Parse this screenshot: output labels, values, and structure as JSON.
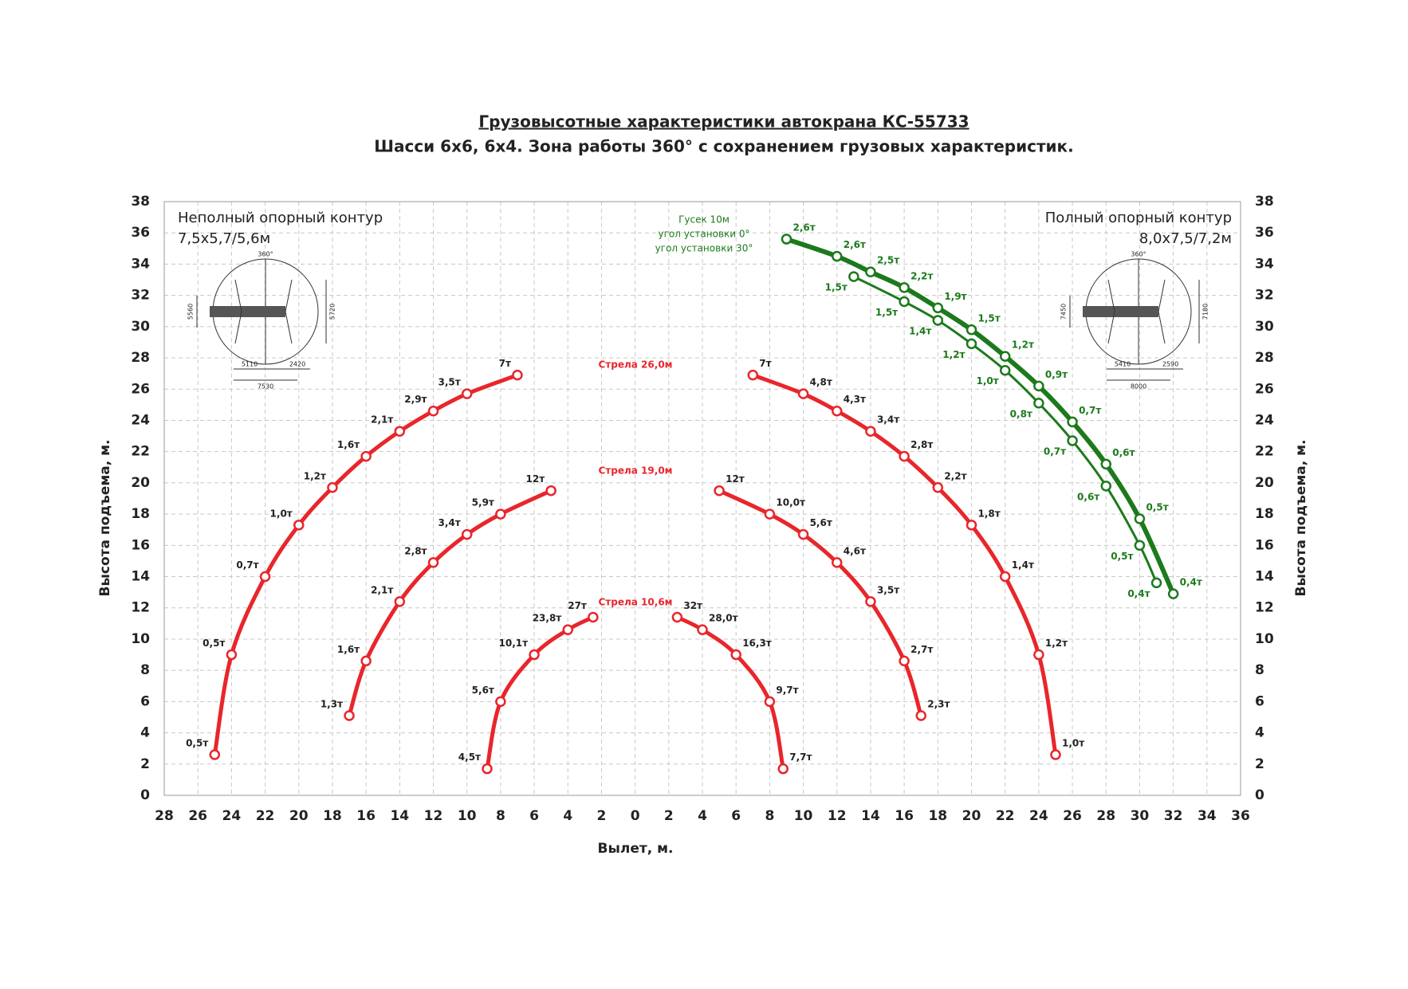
{
  "chart_data": {
    "type": "line",
    "title": "Грузовысотные характеристики автокрана КС-55733",
    "subtitle": "Шасси 6х6, 6х4. Зона работы 360° с сохранением грузовых характеристик.",
    "x_label": "Вылет, м.",
    "y_label": "Высота подъема, м.",
    "xlim": [
      -28,
      36
    ],
    "ylim": [
      0,
      38
    ],
    "xticks": [
      {
        "value": -28,
        "label": "28"
      },
      {
        "value": -26,
        "label": "26"
      },
      {
        "value": -24,
        "label": "24"
      },
      {
        "value": -22,
        "label": "22"
      },
      {
        "value": -20,
        "label": "20"
      },
      {
        "value": -18,
        "label": "18"
      },
      {
        "value": -16,
        "label": "16"
      },
      {
        "value": -14,
        "label": "14"
      },
      {
        "value": -12,
        "label": "12"
      },
      {
        "value": -10,
        "label": "10"
      },
      {
        "value": -8,
        "label": "8"
      },
      {
        "value": -6,
        "label": "6"
      },
      {
        "value": -4,
        "label": "4"
      },
      {
        "value": -2,
        "label": "2"
      },
      0,
      2,
      4,
      6,
      8,
      10,
      12,
      14,
      16,
      18,
      20,
      22,
      24,
      26,
      28,
      30,
      32,
      34,
      36
    ],
    "yticks": [
      0,
      2,
      4,
      6,
      8,
      10,
      12,
      14,
      16,
      18,
      20,
      22,
      24,
      26,
      28,
      30,
      32,
      34,
      36,
      38
    ],
    "grid": true,
    "annotations": [
      "Стрела 26,0м",
      "Стрела 19,0м",
      "Стрела 10,6м",
      "Гусек 10м",
      "угол установки 0°",
      "угол установки 30°",
      "Неполный опорный контур",
      "7,5х5,7/5,6м",
      "Полный опорный контур",
      "8,0х7,5/7,2м"
    ],
    "diagrams": [
      [
        "360°",
        "5110",
        "2420",
        "7530",
        "5720",
        "5560"
      ],
      [
        "360°",
        "5410",
        "2590",
        "8000",
        "7180",
        "7450"
      ]
    ],
    "series": [
      {
        "color": "#e8262b",
        "x": [
          -25,
          -24,
          -22,
          -20,
          -18,
          -16,
          -14,
          -12,
          -10,
          -7
        ],
        "y": [
          2.6,
          9,
          14,
          17.3,
          19.7,
          21.7,
          23.3,
          24.6,
          25.7,
          26.9
        ],
        "loads": [
          "0,5т",
          "0,5т",
          "0,7т",
          "1,0т",
          "1,2т",
          "1,6т",
          "2,1т",
          "2,9т",
          "3,5т",
          "7т"
        ]
      },
      {
        "color": "#e8262b",
        "x": [
          -17,
          -16,
          -14,
          -12,
          -10,
          -8,
          -5
        ],
        "y": [
          5.1,
          8.6,
          12.4,
          14.9,
          16.7,
          18,
          19.5
        ],
        "loads": [
          "1,3т",
          "1,6т",
          "2,1т",
          "2,8т",
          "3,4т",
          "5,9т",
          "12т"
        ]
      },
      {
        "color": "#e8262b",
        "x": [
          -8.8,
          -8,
          -6,
          -4,
          -2.5
        ],
        "y": [
          1.7,
          6,
          9,
          10.6,
          11.4
        ],
        "loads": [
          "4,5т",
          "5,6т",
          "10,1т",
          "23,8т",
          "27т"
        ]
      },
      {
        "color": "#e8262b",
        "x": [
          7,
          10,
          12,
          14,
          16,
          18,
          20,
          22,
          24,
          25
        ],
        "y": [
          26.9,
          25.7,
          24.6,
          23.3,
          21.7,
          19.7,
          17.3,
          14,
          9,
          2.6
        ],
        "loads": [
          "7т",
          "4,8т",
          "4,3т",
          "3,4т",
          "2,8т",
          "2,2т",
          "1,8т",
          "1,4т",
          "1,2т",
          "1,0т"
        ]
      },
      {
        "color": "#e8262b",
        "x": [
          5,
          8,
          10,
          12,
          14,
          16,
          17
        ],
        "y": [
          19.5,
          18,
          16.7,
          14.9,
          12.4,
          8.6,
          5.1
        ],
        "loads": [
          "12т",
          "10,0т",
          "5,6т",
          "4,6т",
          "3,5т",
          "2,7т",
          "2,3т"
        ]
      },
      {
        "color": "#e8262b",
        "x": [
          2.5,
          4,
          6,
          8,
          8.8
        ],
        "y": [
          11.4,
          10.6,
          9,
          6,
          1.7
        ],
        "loads": [
          "32т",
          "28,0т",
          "16,3т",
          "9,7т",
          "7,7т"
        ]
      },
      {
        "color": "#1c7a1c",
        "x": [
          9,
          12,
          14,
          16,
          18,
          20,
          22,
          24,
          26,
          28,
          30,
          32
        ],
        "y": [
          35.6,
          34.5,
          33.5,
          32.5,
          31.2,
          29.8,
          28.1,
          26.2,
          23.9,
          21.2,
          17.7,
          12.9
        ],
        "loads": [
          "2,6т",
          "2,6т",
          "2,5т",
          "2,2т",
          "1,9т",
          "1,5т",
          "1,2т",
          "0,9т",
          "0,7т",
          "0,6т",
          "0,5т",
          "0,4т"
        ]
      },
      {
        "color": "#1c7a1c",
        "x": [
          13,
          16,
          18,
          20,
          22,
          24,
          26,
          28,
          30,
          31
        ],
        "y": [
          33.2,
          31.6,
          30.4,
          28.9,
          27.2,
          25.1,
          22.7,
          19.8,
          16,
          13.6
        ],
        "loads": [
          "1,5т",
          "1,5т",
          "1,4т",
          "1,2т",
          "1,0т",
          "0,8т",
          "0,7т",
          "0,6т",
          "0,5т",
          "0,4т"
        ]
      }
    ]
  }
}
